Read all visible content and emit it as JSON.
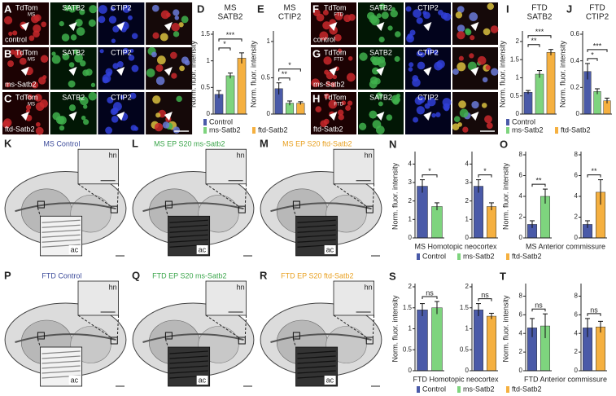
{
  "figure": {
    "micro": [
      {
        "letter": "A",
        "marker": "TdTom",
        "model": "MS",
        "stains": [
          "SATB2",
          "CTIP2"
        ],
        "condition": "control"
      },
      {
        "letter": "B",
        "marker": "TdTom",
        "model": "MS",
        "stains": [
          "SATB2",
          "CTIP2"
        ],
        "condition": "ms-Satb2"
      },
      {
        "letter": "C",
        "marker": "TdTom",
        "model": "MS",
        "stains": [
          "SATB2",
          "CTIP2"
        ],
        "condition": "ftd-Satb2"
      },
      {
        "letter": "F",
        "marker": "TdTom",
        "model": "FTD",
        "stains": [
          "SATB2",
          "CTIP2"
        ],
        "condition": "control"
      },
      {
        "letter": "G",
        "marker": "TdTom",
        "model": "FTD",
        "stains": [
          "SATB2",
          "CTIP2"
        ],
        "condition": "ms-Satb2"
      },
      {
        "letter": "H",
        "marker": "TdTom",
        "model": "FTD",
        "stains": [
          "SATB2",
          "CTIP2"
        ],
        "condition": "ftd-Satb2"
      }
    ],
    "brains": [
      {
        "letter": "K",
        "title": "MS Control",
        "color": "#3b4a9a",
        "inset_top": "hn",
        "inset_bottom": "ac"
      },
      {
        "letter": "L",
        "title": "MS EP S20 ms-Satb2",
        "color": "#3aa54a",
        "inset_top": "hn",
        "inset_bottom": "ac"
      },
      {
        "letter": "M",
        "title": "MS EP S20 ftd-Satb2",
        "color": "#e8a020",
        "inset_top": "hn",
        "inset_bottom": "ac"
      },
      {
        "letter": "P",
        "title": "FTD Control",
        "color": "#3b4a9a",
        "inset_top": "hn",
        "inset_bottom": "ac"
      },
      {
        "letter": "Q",
        "title": "FTD EP S20 ms-Satb2",
        "color": "#3aa54a",
        "inset_top": "hn",
        "inset_bottom": "ac"
      },
      {
        "letter": "R",
        "title": "FTD EP S20 ftd-Satb2",
        "color": "#e8a020",
        "inset_top": "hn",
        "inset_bottom": "ac"
      }
    ],
    "legends": [
      {
        "items": [
          {
            "name": "Control",
            "color": "#4a5aa8"
          },
          {
            "name": "ms-Satb2",
            "color": "#7ed47e"
          },
          {
            "name": "ftd-Satb2",
            "color": "#f5b040"
          }
        ]
      },
      {
        "items": [
          {
            "name": "Control",
            "color": "#4a5aa8"
          },
          {
            "name": "ms-Satb2",
            "color": "#7ed47e"
          },
          {
            "name": "ftd-Satb2",
            "color": "#f5b040"
          }
        ]
      },
      {
        "items": [
          {
            "name": "Control",
            "color": "#4a5aa8"
          },
          {
            "name": "ms-Satb2",
            "color": "#7ed47e"
          },
          {
            "name": "ftd-Satb2",
            "color": "#f5b040"
          }
        ]
      },
      {
        "items": [
          {
            "name": "Control",
            "color": "#4a5aa8"
          },
          {
            "name": "ms-Satb2",
            "color": "#7ed47e"
          },
          {
            "name": "ftd-Satb2",
            "color": "#f5b040"
          }
        ]
      }
    ],
    "captions": [
      "MS Homotopic neocortex",
      "MS Anterior commissure",
      "FTD Homotopic neocortex",
      "FTD Anterior commissure"
    ]
  },
  "chart_data": [
    {
      "type": "bar",
      "panel": "D",
      "title": [
        "MS",
        "SATB2"
      ],
      "ylabel": "Norm. fluor. intensity",
      "values": [
        0.37,
        0.72,
        1.05
      ],
      "errors": [
        0.07,
        0.05,
        0.1
      ],
      "colors": [
        "#4a5aa8",
        "#7ed47e",
        "#f5b040"
      ],
      "ylim": [
        0,
        1.5
      ],
      "yticks": [
        0,
        0.5,
        1,
        1.5
      ],
      "significance": [
        {
          "pair": [
            0,
            1
          ],
          "label": "*"
        },
        {
          "pair": [
            0,
            2
          ],
          "label": "***"
        }
      ]
    },
    {
      "type": "bar",
      "panel": "E",
      "title": [
        "MS",
        "CTIP2"
      ],
      "ylabel": "Norm. fluor. intensity",
      "values": [
        0.35,
        0.15,
        0.15
      ],
      "errors": [
        0.08,
        0.03,
        0.02
      ],
      "colors": [
        "#4a5aa8",
        "#7ed47e",
        "#f5b040"
      ],
      "ylim": [
        0,
        1.1
      ],
      "yticks": [
        0,
        0.5,
        1
      ],
      "significance": [
        {
          "pair": [
            0,
            1
          ],
          "label": "**"
        },
        {
          "pair": [
            0,
            2
          ],
          "label": "*"
        }
      ]
    },
    {
      "type": "bar",
      "panel": "I",
      "title": [
        "FTD",
        "SATB2"
      ],
      "ylabel": "Norm. fluor. intensity",
      "values": [
        0.6,
        1.1,
        1.7
      ],
      "errors": [
        0.05,
        0.1,
        0.08
      ],
      "colors": [
        "#4a5aa8",
        "#7ed47e",
        "#f5b040"
      ],
      "ylim": [
        0,
        2.2
      ],
      "yticks": [
        0,
        0.5,
        1,
        1.5,
        2
      ],
      "significance": [
        {
          "pair": [
            0,
            1
          ],
          "label": "**"
        },
        {
          "pair": [
            0,
            2
          ],
          "label": "***"
        }
      ]
    },
    {
      "type": "bar",
      "panel": "J",
      "title": [
        "FTD",
        "CTIP2"
      ],
      "ylabel": "Norm. fluor. intensity",
      "values": [
        0.32,
        0.17,
        0.1
      ],
      "errors": [
        0.06,
        0.02,
        0.02
      ],
      "colors": [
        "#4a5aa8",
        "#7ed47e",
        "#f5b040"
      ],
      "ylim": [
        0,
        0.6
      ],
      "yticks": [
        0,
        0.2,
        0.4,
        0.6
      ],
      "significance": [
        {
          "pair": [
            0,
            1
          ],
          "label": "*"
        },
        {
          "pair": [
            0,
            2
          ],
          "label": "***"
        }
      ]
    },
    {
      "type": "bar",
      "panel": "N",
      "ylabel": "Norm. fluor. intensity",
      "values": [
        2.8,
        1.7
      ],
      "errors": [
        0.35,
        0.2
      ],
      "colors": [
        "#4a5aa8",
        "#7ed47e"
      ],
      "ylim": [
        0,
        4.5
      ],
      "yticks": [
        0,
        1,
        2,
        3,
        4
      ],
      "significance": [
        {
          "pair": [
            0,
            1
          ],
          "label": "*"
        }
      ]
    },
    {
      "type": "bar",
      "values": [
        2.8,
        1.7
      ],
      "errors": [
        0.35,
        0.2
      ],
      "colors": [
        "#4a5aa8",
        "#f5b040"
      ],
      "ylim": [
        0,
        4.5
      ],
      "yticks": [
        0,
        1,
        2,
        3,
        4
      ],
      "significance": [
        {
          "pair": [
            0,
            1
          ],
          "label": "*"
        }
      ]
    },
    {
      "type": "bar",
      "panel": "O",
      "ylabel": "Norm. fluor. intensity",
      "values": [
        1.3,
        4.0
      ],
      "errors": [
        0.35,
        0.7
      ],
      "colors": [
        "#4a5aa8",
        "#7ed47e"
      ],
      "ylim": [
        0,
        8
      ],
      "yticks": [
        0,
        2,
        4,
        6,
        8
      ],
      "significance": [
        {
          "pair": [
            0,
            1
          ],
          "label": "**"
        }
      ]
    },
    {
      "type": "bar",
      "values": [
        1.3,
        4.4
      ],
      "errors": [
        0.35,
        1.2
      ],
      "colors": [
        "#4a5aa8",
        "#f5b040"
      ],
      "ylim": [
        0,
        8
      ],
      "yticks": [
        0,
        2,
        4,
        6,
        8
      ],
      "significance": [
        {
          "pair": [
            0,
            1
          ],
          "label": "**"
        }
      ]
    },
    {
      "type": "bar",
      "panel": "S",
      "ylabel": "Norm. fluor. intensity",
      "values": [
        1.45,
        1.5
      ],
      "errors": [
        0.15,
        0.15
      ],
      "colors": [
        "#4a5aa8",
        "#7ed47e"
      ],
      "ylim": [
        0,
        2
      ],
      "yticks": [
        0,
        0.5,
        1,
        1.5,
        2
      ],
      "significance": [
        {
          "pair": [
            0,
            1
          ],
          "label": "ns"
        }
      ]
    },
    {
      "type": "bar",
      "values": [
        1.45,
        1.3
      ],
      "errors": [
        0.15,
        0.07
      ],
      "colors": [
        "#4a5aa8",
        "#f5b040"
      ],
      "ylim": [
        0,
        2
      ],
      "yticks": [
        0,
        0.5,
        1,
        1.5,
        2
      ],
      "significance": [
        {
          "pair": [
            0,
            1
          ],
          "label": "ns"
        }
      ]
    },
    {
      "type": "bar",
      "panel": "T",
      "ylabel": "Norm. fluor. intensity",
      "values": [
        4.6,
        4.8
      ],
      "errors": [
        1.0,
        1.3
      ],
      "colors": [
        "#4a5aa8",
        "#7ed47e"
      ],
      "ylim": [
        0,
        9
      ],
      "yticks": [
        0,
        2,
        4,
        6,
        8
      ],
      "significance": [
        {
          "pair": [
            0,
            1
          ],
          "label": "ns"
        }
      ]
    },
    {
      "type": "bar",
      "values": [
        4.6,
        4.7
      ],
      "errors": [
        1.0,
        0.6
      ],
      "colors": [
        "#4a5aa8",
        "#f5b040"
      ],
      "ylim": [
        0,
        9
      ],
      "yticks": [
        0,
        2,
        4,
        6,
        8
      ],
      "significance": [
        {
          "pair": [
            0,
            1
          ],
          "label": "ns"
        }
      ]
    }
  ]
}
